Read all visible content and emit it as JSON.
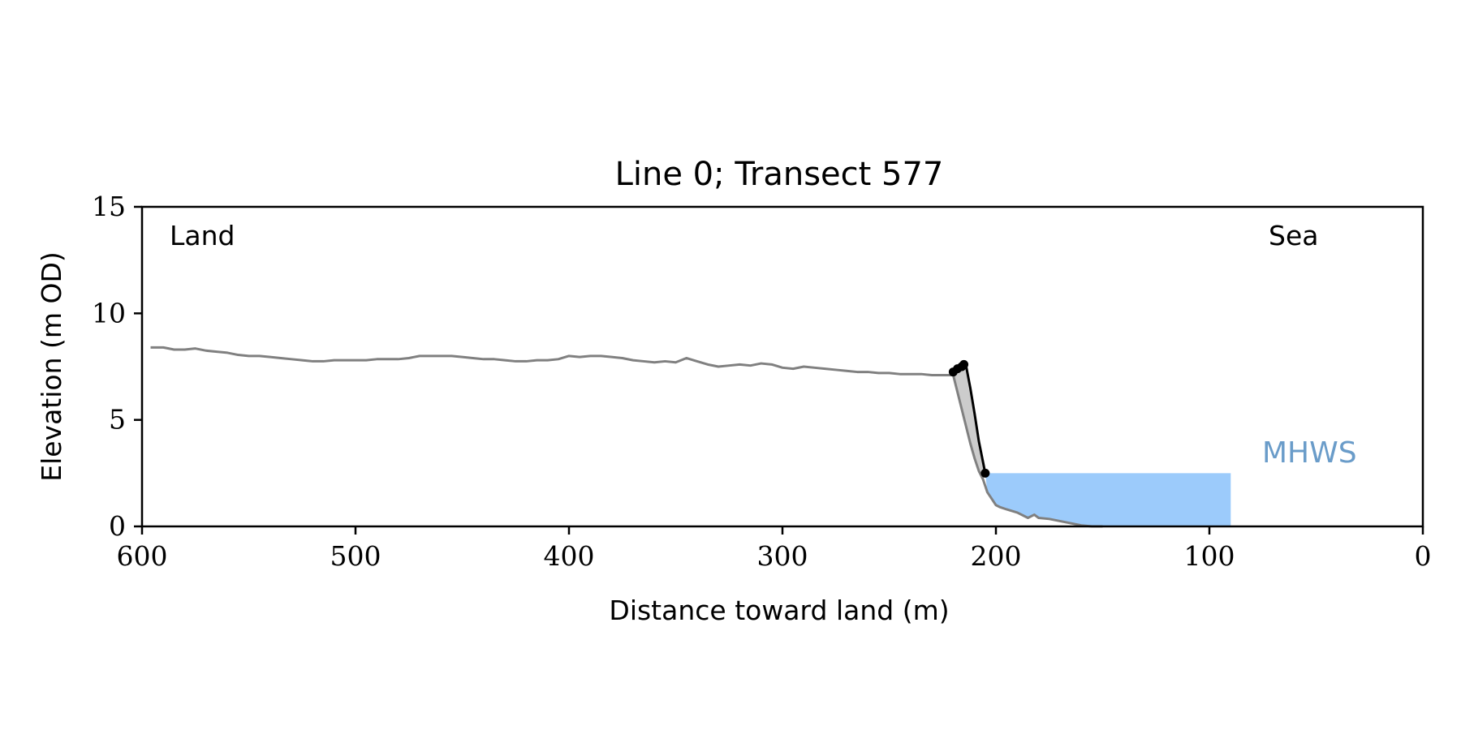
{
  "chart_data": {
    "type": "line",
    "title": "Line 0; Transect 577",
    "xlabel": "Distance toward land (m)",
    "ylabel": "Elevation (m OD)",
    "xlim": [
      600,
      0
    ],
    "ylim": [
      0,
      15
    ],
    "xticks": [
      600,
      500,
      400,
      300,
      200,
      100,
      0
    ],
    "yticks": [
      0,
      5,
      10,
      15
    ],
    "grid": false,
    "annotations": {
      "land_label": "Land",
      "sea_label": "Sea",
      "water_label": "MHWS"
    },
    "colors": {
      "profile": "#808080",
      "cliff_line": "#000000",
      "cliff_fill": "#cccccc",
      "water_fill": "#9ccbfb",
      "water_label": "#6a9cc9"
    },
    "mhws_level": 2.5,
    "water_extent": [
      205,
      90
    ],
    "profile": {
      "x": [
        596,
        590,
        585,
        580,
        575,
        570,
        565,
        560,
        555,
        550,
        545,
        540,
        535,
        530,
        525,
        520,
        515,
        510,
        505,
        500,
        495,
        490,
        485,
        480,
        475,
        470,
        465,
        460,
        455,
        450,
        445,
        440,
        435,
        430,
        425,
        420,
        415,
        410,
        405,
        400,
        395,
        390,
        385,
        380,
        375,
        370,
        365,
        360,
        355,
        350,
        345,
        340,
        335,
        330,
        325,
        320,
        315,
        310,
        305,
        300,
        295,
        290,
        285,
        280,
        275,
        270,
        265,
        260,
        255,
        250,
        245,
        240,
        235,
        230,
        225,
        220,
        218,
        216,
        214,
        212,
        210,
        208,
        206,
        204,
        202,
        200,
        198,
        195,
        190,
        187,
        185,
        182,
        180,
        175,
        170,
        165,
        160,
        155,
        150
      ],
      "y": [
        8.4,
        8.4,
        8.3,
        8.3,
        8.35,
        8.25,
        8.2,
        8.15,
        8.05,
        8.0,
        8.0,
        7.95,
        7.9,
        7.85,
        7.8,
        7.75,
        7.75,
        7.8,
        7.8,
        7.8,
        7.8,
        7.85,
        7.85,
        7.85,
        7.9,
        8.0,
        8.0,
        8.0,
        8.0,
        7.95,
        7.9,
        7.85,
        7.85,
        7.8,
        7.75,
        7.75,
        7.8,
        7.8,
        7.85,
        8.0,
        7.95,
        8.0,
        8.0,
        7.95,
        7.9,
        7.8,
        7.75,
        7.7,
        7.75,
        7.7,
        7.9,
        7.75,
        7.6,
        7.5,
        7.55,
        7.6,
        7.55,
        7.65,
        7.6,
        7.45,
        7.4,
        7.5,
        7.45,
        7.4,
        7.35,
        7.3,
        7.25,
        7.25,
        7.2,
        7.2,
        7.15,
        7.15,
        7.15,
        7.1,
        7.1,
        7.1,
        6.3,
        5.5,
        4.7,
        3.9,
        3.2,
        2.6,
        2.2,
        1.6,
        1.3,
        1.0,
        0.9,
        0.8,
        0.65,
        0.5,
        0.4,
        0.55,
        0.4,
        0.35,
        0.25,
        0.15,
        0.05,
        0.0,
        0.0
      ]
    },
    "cliff": {
      "x": [
        220,
        218,
        216,
        215,
        214,
        212,
        210,
        208,
        206,
        205
      ],
      "y": [
        7.25,
        7.45,
        7.6,
        7.65,
        7.55,
        6.5,
        5.3,
        4.0,
        3.0,
        2.5
      ]
    },
    "cliff_markers": {
      "x": [
        220,
        218,
        216,
        215,
        205
      ],
      "y": [
        7.25,
        7.4,
        7.5,
        7.6,
        2.5
      ]
    }
  }
}
